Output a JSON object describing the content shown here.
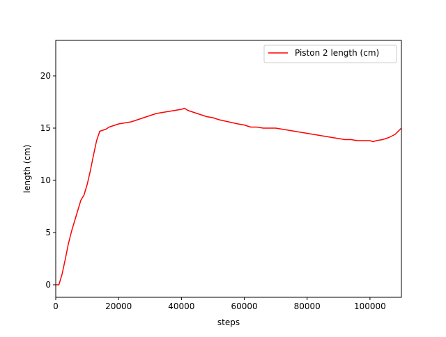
{
  "chart_data": {
    "type": "line",
    "title": "",
    "xlabel": "steps",
    "ylabel": "length (cm)",
    "xlim": [
      0,
      110000
    ],
    "ylim": [
      -1.2,
      23.4
    ],
    "xticks": [
      0,
      20000,
      40000,
      60000,
      80000,
      100000
    ],
    "xtick_labels": [
      "0",
      "20000",
      "40000",
      "60000",
      "80000",
      "100000"
    ],
    "yticks": [
      0,
      5,
      10,
      15,
      20
    ],
    "ytick_labels": [
      "0",
      "5",
      "10",
      "15",
      "20"
    ],
    "grid": false,
    "legend": {
      "position": "top-right"
    },
    "series": [
      {
        "name": "Piston 2 length (cm)",
        "color": "#ff0000",
        "x": [
          0,
          1000,
          2000,
          3000,
          4000,
          5000,
          6000,
          7000,
          8000,
          9000,
          10000,
          11000,
          12000,
          13000,
          14000,
          15000,
          16000,
          17000,
          18000,
          19000,
          20000,
          22000,
          24000,
          26000,
          28000,
          30000,
          32000,
          34000,
          36000,
          38000,
          40000,
          41000,
          42000,
          44000,
          46000,
          48000,
          50000,
          52000,
          55000,
          58000,
          60000,
          62000,
          64000,
          66000,
          68000,
          70000,
          72000,
          74000,
          76000,
          78000,
          80000,
          82000,
          84000,
          86000,
          88000,
          90000,
          92000,
          94000,
          96000,
          98000,
          100000,
          101000,
          102000,
          104000,
          106000,
          108000,
          110000
        ],
        "y": [
          0.0,
          0.0,
          1.0,
          2.4,
          3.9,
          5.1,
          6.1,
          7.1,
          8.1,
          8.6,
          9.6,
          10.9,
          12.4,
          13.8,
          14.7,
          14.8,
          14.9,
          15.1,
          15.2,
          15.3,
          15.4,
          15.5,
          15.6,
          15.8,
          16.0,
          16.2,
          16.4,
          16.5,
          16.6,
          16.7,
          16.8,
          16.9,
          16.7,
          16.5,
          16.3,
          16.1,
          16.0,
          15.8,
          15.6,
          15.4,
          15.3,
          15.1,
          15.1,
          15.0,
          15.0,
          15.0,
          14.9,
          14.8,
          14.7,
          14.6,
          14.5,
          14.4,
          14.3,
          14.2,
          14.1,
          14.0,
          13.9,
          13.9,
          13.8,
          13.8,
          13.8,
          13.7,
          13.8,
          13.9,
          14.1,
          14.4,
          15.0
        ]
      }
    ]
  }
}
